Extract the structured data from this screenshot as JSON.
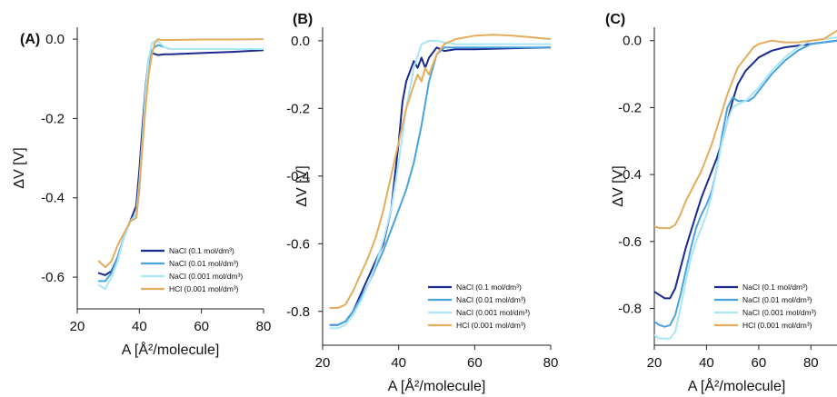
{
  "chart_data": [
    {
      "type": "line",
      "panel_label": "(A)",
      "xlabel": "A [Å²/molecule]",
      "ylabel": "ΔV [V]",
      "xlim": [
        20,
        80
      ],
      "ylim": [
        -0.68,
        0.03
      ],
      "xticks": [
        20,
        40,
        60,
        80
      ],
      "yticks": [
        0.0,
        -0.2,
        -0.4,
        -0.6
      ],
      "legend_position": "bottom-right",
      "series": [
        {
          "name": "NaCl (0.1 mol/dm³)",
          "color": "#1a2a8f",
          "x": [
            27,
            29,
            31,
            33,
            35,
            37,
            38,
            39,
            40,
            41,
            42,
            43,
            44,
            46,
            48,
            50,
            60,
            70,
            80
          ],
          "y": [
            -0.59,
            -0.595,
            -0.585,
            -0.55,
            -0.5,
            -0.46,
            -0.44,
            -0.42,
            -0.33,
            -0.22,
            -0.12,
            -0.05,
            -0.035,
            -0.04,
            -0.038,
            -0.038,
            -0.035,
            -0.032,
            -0.028
          ]
        },
        {
          "name": "NaCl (0.01 mol/dm³)",
          "color": "#4aa3dc",
          "x": [
            27,
            29,
            31,
            33,
            35,
            37,
            39,
            40,
            41,
            42,
            43,
            44,
            45,
            46,
            48,
            50,
            60,
            70,
            80
          ],
          "y": [
            -0.61,
            -0.61,
            -0.59,
            -0.55,
            -0.5,
            -0.46,
            -0.45,
            -0.38,
            -0.26,
            -0.15,
            -0.07,
            -0.03,
            -0.02,
            -0.015,
            -0.02,
            -0.025,
            -0.025,
            -0.025,
            -0.025
          ]
        },
        {
          "name": "NaCl (0.001 mol/dm³)",
          "color": "#a9e6f7",
          "x": [
            27,
            29,
            31,
            33,
            35,
            37,
            39,
            40,
            41,
            42,
            43,
            44,
            45,
            46,
            48,
            50,
            60,
            70,
            80
          ],
          "y": [
            -0.62,
            -0.63,
            -0.6,
            -0.56,
            -0.5,
            -0.46,
            -0.44,
            -0.36,
            -0.25,
            -0.13,
            -0.05,
            -0.01,
            -0.005,
            -0.005,
            -0.02,
            -0.025,
            -0.025,
            -0.025,
            -0.025
          ]
        },
        {
          "name": "HCl (0.001 mol/dm³)",
          "color": "#e3ad5c",
          "x": [
            27,
            29,
            31,
            33,
            35,
            37,
            39,
            40,
            41,
            42,
            43,
            44,
            45,
            46,
            47,
            50,
            60,
            70,
            80
          ],
          "y": [
            -0.56,
            -0.575,
            -0.56,
            -0.52,
            -0.49,
            -0.46,
            -0.45,
            -0.37,
            -0.27,
            -0.17,
            -0.09,
            -0.04,
            -0.01,
            0.0,
            -0.002,
            -0.002,
            -0.001,
            -0.001,
            0.0
          ]
        }
      ]
    },
    {
      "type": "line",
      "panel_label": "(B)",
      "xlabel": "A [Å²/molecule]",
      "ylabel": "ΔV [V]",
      "xlim": [
        20,
        80
      ],
      "ylim": [
        -0.9,
        0.04
      ],
      "xticks": [
        20,
        40,
        60,
        80
      ],
      "yticks": [
        0.0,
        -0.2,
        -0.4,
        -0.6,
        -0.8
      ],
      "legend_position": "bottom-right",
      "series": [
        {
          "name": "NaCl (0.1 mol/dm³)",
          "color": "#1a2a8f",
          "x": [
            22,
            24,
            26,
            28,
            30,
            32,
            34,
            36,
            38,
            40,
            41,
            42,
            43,
            44,
            45,
            46,
            47,
            48,
            50,
            52,
            55,
            60,
            70,
            80
          ],
          "y": [
            -0.84,
            -0.84,
            -0.83,
            -0.8,
            -0.75,
            -0.7,
            -0.65,
            -0.6,
            -0.5,
            -0.3,
            -0.18,
            -0.12,
            -0.09,
            -0.06,
            -0.08,
            -0.05,
            -0.08,
            -0.05,
            -0.02,
            -0.03,
            -0.025,
            -0.025,
            -0.022,
            -0.02
          ]
        },
        {
          "name": "NaCl (0.01 mol/dm³)",
          "color": "#4aa3dc",
          "x": [
            22,
            24,
            26,
            28,
            30,
            32,
            34,
            36,
            38,
            40,
            42,
            44,
            46,
            48,
            50,
            52,
            55,
            60,
            70,
            80
          ],
          "y": [
            -0.84,
            -0.84,
            -0.83,
            -0.8,
            -0.76,
            -0.72,
            -0.67,
            -0.62,
            -0.56,
            -0.5,
            -0.44,
            -0.36,
            -0.25,
            -0.12,
            -0.04,
            -0.02,
            -0.02,
            -0.02,
            -0.02,
            -0.02
          ]
        },
        {
          "name": "NaCl (0.001 mol/dm³)",
          "color": "#a9e6f7",
          "x": [
            22,
            24,
            26,
            28,
            30,
            32,
            34,
            36,
            38,
            40,
            42,
            44,
            46,
            48,
            50,
            52,
            55,
            60,
            70,
            80
          ],
          "y": [
            -0.85,
            -0.85,
            -0.84,
            -0.81,
            -0.77,
            -0.72,
            -0.66,
            -0.59,
            -0.5,
            -0.36,
            -0.2,
            -0.08,
            -0.01,
            0.0,
            0.0,
            -0.005,
            -0.01,
            -0.01,
            -0.01,
            -0.01
          ]
        },
        {
          "name": "HCl (0.001 mol/dm³)",
          "color": "#e3ad5c",
          "x": [
            22,
            24,
            26,
            28,
            30,
            32,
            34,
            36,
            38,
            40,
            42,
            44,
            45,
            46,
            47,
            48,
            49,
            50,
            52,
            55,
            60,
            65,
            70,
            80
          ],
          "y": [
            -0.79,
            -0.79,
            -0.78,
            -0.74,
            -0.69,
            -0.64,
            -0.58,
            -0.5,
            -0.4,
            -0.3,
            -0.2,
            -0.13,
            -0.1,
            -0.12,
            -0.08,
            -0.1,
            -0.07,
            -0.04,
            -0.01,
            0.005,
            0.015,
            0.018,
            0.015,
            0.005
          ]
        }
      ]
    },
    {
      "type": "line",
      "panel_label": "(C)",
      "xlabel": "A [Å²/molecule]",
      "ylabel": "ΔV [V]",
      "xlim": [
        20,
        90
      ],
      "ylim": [
        -0.91,
        0.04
      ],
      "xticks": [
        20,
        40,
        60,
        80
      ],
      "yticks": [
        0.0,
        -0.2,
        -0.4,
        -0.6,
        -0.8
      ],
      "legend_position": "bottom-right",
      "series": [
        {
          "name": "NaCl (0.1 mol/dm³)",
          "color": "#1a2a8f",
          "x": [
            20,
            22,
            24,
            26,
            28,
            30,
            32,
            34,
            36,
            38,
            40,
            42,
            44,
            46,
            48,
            50,
            52,
            55,
            60,
            65,
            70,
            80,
            90
          ],
          "y": [
            -0.75,
            -0.76,
            -0.77,
            -0.77,
            -0.74,
            -0.68,
            -0.62,
            -0.57,
            -0.52,
            -0.47,
            -0.43,
            -0.39,
            -0.35,
            -0.3,
            -0.24,
            -0.18,
            -0.13,
            -0.09,
            -0.05,
            -0.03,
            -0.02,
            -0.01,
            0.0
          ]
        },
        {
          "name": "NaCl (0.01 mol/dm³)",
          "color": "#4aa3dc",
          "x": [
            20,
            22,
            24,
            26,
            28,
            30,
            32,
            34,
            36,
            38,
            40,
            42,
            44,
            46,
            48,
            50,
            52,
            54,
            56,
            58,
            60,
            65,
            70,
            75,
            80,
            90
          ],
          "y": [
            -0.84,
            -0.85,
            -0.855,
            -0.85,
            -0.82,
            -0.76,
            -0.69,
            -0.62,
            -0.56,
            -0.52,
            -0.49,
            -0.45,
            -0.38,
            -0.28,
            -0.2,
            -0.17,
            -0.18,
            -0.18,
            -0.18,
            -0.17,
            -0.15,
            -0.1,
            -0.06,
            -0.03,
            -0.01,
            0.0
          ]
        },
        {
          "name": "NaCl (0.001 mol/dm³)",
          "color": "#a9e6f7",
          "x": [
            20,
            22,
            24,
            26,
            28,
            30,
            32,
            34,
            36,
            38,
            40,
            42,
            44,
            46,
            48,
            50,
            52,
            55,
            60,
            65,
            70,
            75,
            80,
            90
          ],
          "y": [
            -0.88,
            -0.89,
            -0.89,
            -0.89,
            -0.87,
            -0.8,
            -0.72,
            -0.65,
            -0.6,
            -0.56,
            -0.52,
            -0.46,
            -0.38,
            -0.3,
            -0.24,
            -0.2,
            -0.19,
            -0.18,
            -0.14,
            -0.09,
            -0.05,
            -0.02,
            0.0,
            0.01
          ]
        },
        {
          "name": "HCl (0.001 mol/dm³)",
          "color": "#e3ad5c",
          "x": [
            20,
            22,
            24,
            26,
            28,
            30,
            32,
            34,
            36,
            38,
            40,
            42,
            44,
            46,
            48,
            50,
            52,
            55,
            58,
            60,
            65,
            70,
            75,
            80,
            85,
            90
          ],
          "y": [
            -0.555,
            -0.56,
            -0.56,
            -0.56,
            -0.55,
            -0.52,
            -0.48,
            -0.45,
            -0.42,
            -0.39,
            -0.35,
            -0.31,
            -0.26,
            -0.21,
            -0.16,
            -0.12,
            -0.08,
            -0.05,
            -0.02,
            -0.01,
            0.0,
            -0.005,
            -0.005,
            0.0,
            0.005,
            0.03
          ]
        }
      ]
    }
  ]
}
